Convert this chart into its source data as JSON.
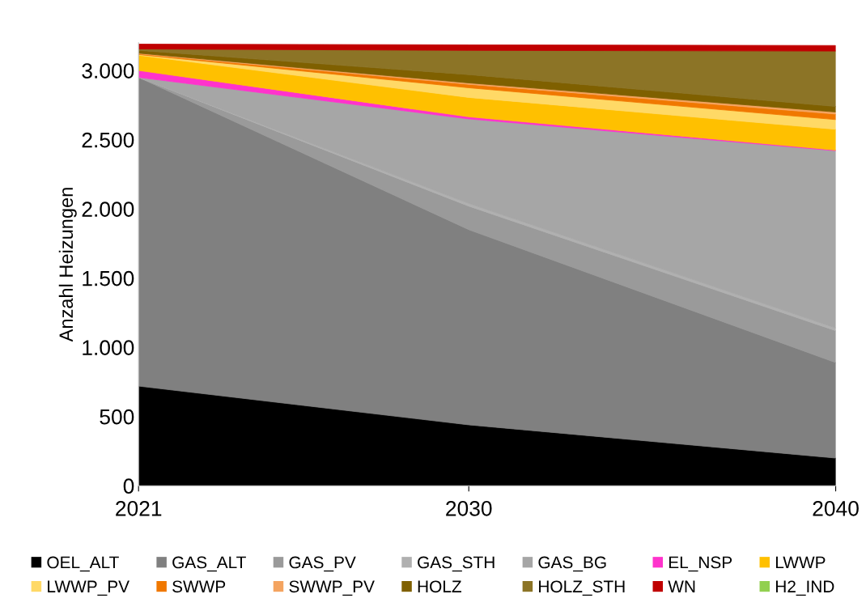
{
  "chart_data": {
    "type": "area",
    "stacked": true,
    "ylabel": "Anzahl Heizungen",
    "x": [
      2021,
      2030,
      2040
    ],
    "xlim": [
      2021,
      2040
    ],
    "xticks": [
      2021,
      2030,
      2040
    ],
    "ylim": [
      0,
      3200
    ],
    "yticks": [
      0,
      500,
      {
        "value": 1000,
        "label": "1.000"
      },
      {
        "value": 1500,
        "label": "1.500"
      },
      {
        "value": 2000,
        "label": "2.000"
      },
      {
        "value": 2500,
        "label": "2.500"
      },
      {
        "value": 3000,
        "label": "3.000"
      }
    ],
    "grid": false,
    "legend": "bottom",
    "series": [
      {
        "name": "OEL_ALT",
        "color": "#000000",
        "values": [
          720,
          440,
          200
        ]
      },
      {
        "name": "GAS_ALT",
        "color": "#808080",
        "values": [
          2230,
          1410,
          690
        ]
      },
      {
        "name": "GAS_PV",
        "color": "#9a9a9a",
        "values": [
          0,
          170,
          230
        ]
      },
      {
        "name": "GAS_STH",
        "color": "#b0b0b0",
        "values": [
          0,
          20,
          20
        ]
      },
      {
        "name": "GAS_BG",
        "color": "#a6a6a6",
        "values": [
          0,
          610,
          1280
        ]
      },
      {
        "name": "EL_NSP",
        "color": "#ff33cc",
        "values": [
          50,
          15,
          5
        ]
      },
      {
        "name": "LWWP",
        "color": "#ffc000",
        "values": [
          110,
          140,
          150
        ]
      },
      {
        "name": "LWWP_PV",
        "color": "#ffd966",
        "values": [
          5,
          70,
          70
        ]
      },
      {
        "name": "SWWP",
        "color": "#f07800",
        "values": [
          5,
          25,
          40
        ]
      },
      {
        "name": "SWWP_PV",
        "color": "#f4a460",
        "values": [
          5,
          10,
          15
        ]
      },
      {
        "name": "HOLZ",
        "color": "#7f6000",
        "values": [
          20,
          60,
          40
        ]
      },
      {
        "name": "HOLZ_STH",
        "color": "#8c7426",
        "values": [
          10,
          175,
          400
        ]
      },
      {
        "name": "WN",
        "color": "#c00000",
        "values": [
          35,
          40,
          40
        ]
      },
      {
        "name": "H2_IND",
        "color": "#92d050",
        "values": [
          null,
          null,
          null
        ]
      }
    ]
  }
}
